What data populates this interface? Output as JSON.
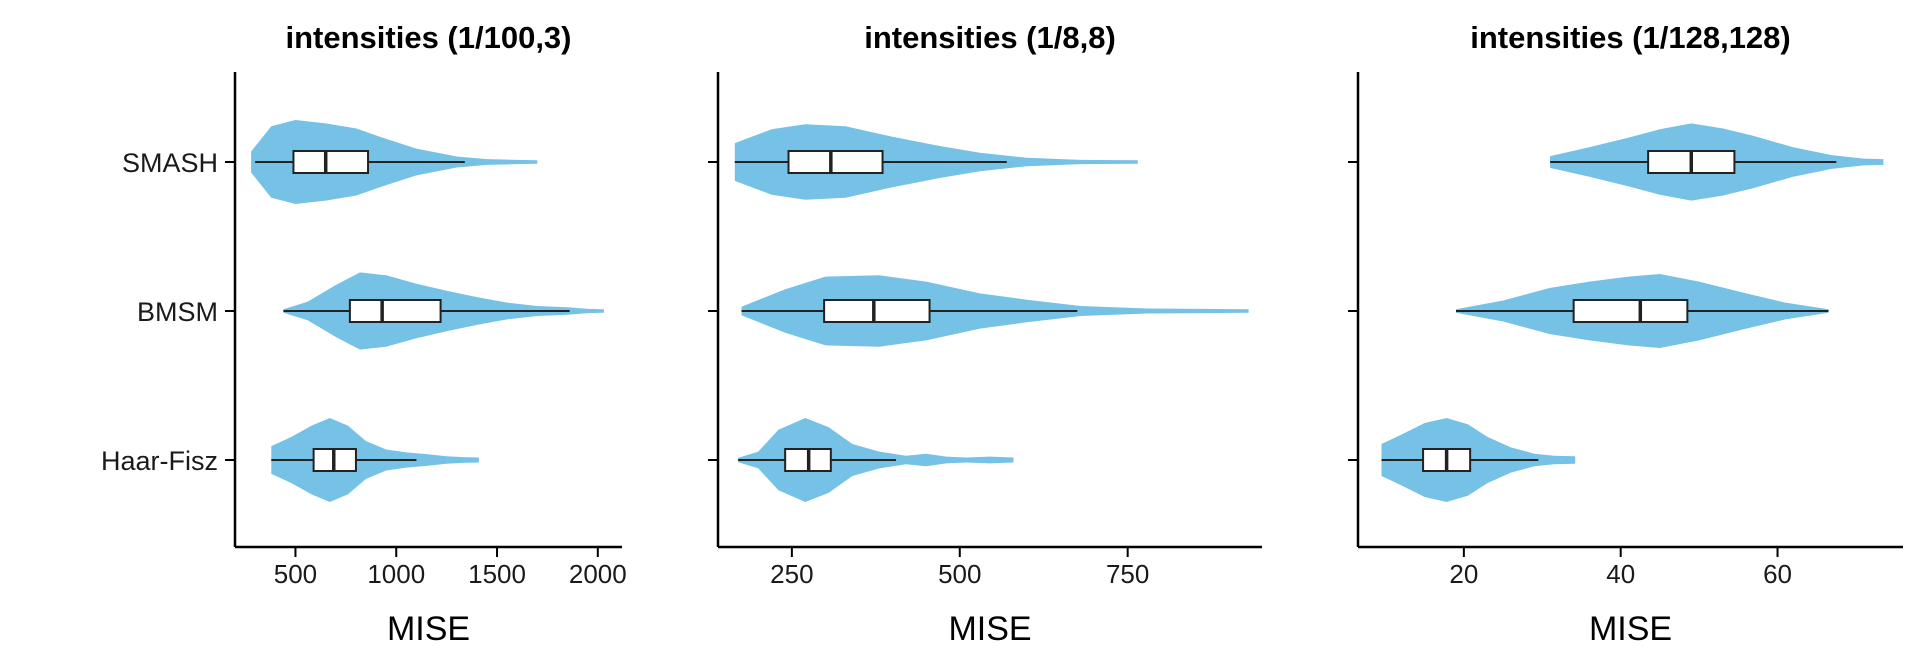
{
  "chart_data": [
    {
      "type": "violin",
      "title": "intensities (1/100,3)",
      "xlabel": "MISE",
      "ylabel": "",
      "xlim": [
        200,
        2120
      ],
      "xticks": [
        500,
        1000,
        1500,
        2000
      ],
      "categories": [
        "SMASH",
        "BMSM",
        "Haar-Fisz"
      ],
      "fill_color": "#76c1e6",
      "groups": [
        {
          "name": "SMASH",
          "box": {
            "min": 300,
            "q1": 490,
            "median": 650,
            "q3": 860,
            "max": 1340
          },
          "range": [
            280,
            1700
          ],
          "density": [
            [
              280,
              0.25
            ],
            [
              380,
              0.85
            ],
            [
              500,
              1.0
            ],
            [
              650,
              0.92
            ],
            [
              800,
              0.8
            ],
            [
              950,
              0.55
            ],
            [
              1100,
              0.32
            ],
            [
              1300,
              0.13
            ],
            [
              1450,
              0.07
            ],
            [
              1600,
              0.05
            ],
            [
              1700,
              0.04
            ]
          ]
        },
        {
          "name": "BMSM",
          "box": {
            "min": 440,
            "q1": 770,
            "median": 930,
            "q3": 1220,
            "max": 1860
          },
          "range": [
            440,
            2030
          ],
          "density": [
            [
              440,
              0.04
            ],
            [
              560,
              0.22
            ],
            [
              700,
              0.62
            ],
            [
              820,
              0.92
            ],
            [
              950,
              0.85
            ],
            [
              1100,
              0.65
            ],
            [
              1250,
              0.48
            ],
            [
              1400,
              0.33
            ],
            [
              1550,
              0.2
            ],
            [
              1700,
              0.12
            ],
            [
              1850,
              0.09
            ],
            [
              1950,
              0.05
            ],
            [
              2030,
              0.04
            ]
          ]
        },
        {
          "name": "Haar-Fisz",
          "box": {
            "min": 380,
            "q1": 590,
            "median": 690,
            "q3": 800,
            "max": 1100
          },
          "range": [
            380,
            1410
          ],
          "density": [
            [
              380,
              0.33
            ],
            [
              480,
              0.55
            ],
            [
              580,
              0.82
            ],
            [
              670,
              1.0
            ],
            [
              760,
              0.82
            ],
            [
              850,
              0.45
            ],
            [
              950,
              0.25
            ],
            [
              1050,
              0.18
            ],
            [
              1150,
              0.14
            ],
            [
              1250,
              0.09
            ],
            [
              1330,
              0.07
            ],
            [
              1410,
              0.06
            ]
          ]
        }
      ]
    },
    {
      "type": "violin",
      "title": "intensities (1/8,8)",
      "xlabel": "MISE",
      "ylabel": "",
      "xlim": [
        140,
        950
      ],
      "xticks": [
        250,
        500,
        750
      ],
      "categories": [
        "SMASH",
        "BMSM",
        "Haar-Fisz"
      ],
      "fill_color": "#76c1e6",
      "groups": [
        {
          "name": "SMASH",
          "box": {
            "min": 165,
            "q1": 245,
            "median": 308,
            "q3": 385,
            "max": 570
          },
          "range": [
            165,
            765
          ],
          "density": [
            [
              165,
              0.45
            ],
            [
              220,
              0.78
            ],
            [
              270,
              0.9
            ],
            [
              330,
              0.85
            ],
            [
              400,
              0.6
            ],
            [
              470,
              0.38
            ],
            [
              530,
              0.22
            ],
            [
              600,
              0.1
            ],
            [
              680,
              0.05
            ],
            [
              765,
              0.04
            ]
          ]
        },
        {
          "name": "BMSM",
          "box": {
            "min": 175,
            "q1": 298,
            "median": 372,
            "q3": 455,
            "max": 675
          },
          "range": [
            175,
            930
          ],
          "density": [
            [
              175,
              0.1
            ],
            [
              240,
              0.52
            ],
            [
              300,
              0.82
            ],
            [
              380,
              0.85
            ],
            [
              450,
              0.7
            ],
            [
              530,
              0.42
            ],
            [
              600,
              0.27
            ],
            [
              680,
              0.12
            ],
            [
              780,
              0.06
            ],
            [
              860,
              0.05
            ],
            [
              930,
              0.04
            ]
          ]
        },
        {
          "name": "Haar-Fisz",
          "box": {
            "min": 170,
            "q1": 240,
            "median": 275,
            "q3": 308,
            "max": 405
          },
          "range": [
            170,
            580
          ],
          "density": [
            [
              170,
              0.05
            ],
            [
              200,
              0.2
            ],
            [
              230,
              0.72
            ],
            [
              270,
              1.0
            ],
            [
              305,
              0.78
            ],
            [
              340,
              0.38
            ],
            [
              380,
              0.2
            ],
            [
              420,
              0.1
            ],
            [
              450,
              0.15
            ],
            [
              480,
              0.08
            ],
            [
              510,
              0.06
            ],
            [
              545,
              0.08
            ],
            [
              580,
              0.06
            ]
          ]
        }
      ]
    },
    {
      "type": "violin",
      "title": "intensities (1/128,128)",
      "xlabel": "MISE",
      "ylabel": "",
      "xlim": [
        6.5,
        76
      ],
      "xticks": [
        20,
        40,
        60
      ],
      "categories": [
        "SMASH",
        "BMSM",
        "Haar-Fisz"
      ],
      "fill_color": "#76c1e6",
      "groups": [
        {
          "name": "SMASH",
          "box": {
            "min": 31,
            "q1": 43.5,
            "median": 49,
            "q3": 54.5,
            "max": 67.5
          },
          "range": [
            31,
            73.5
          ],
          "density": [
            [
              31,
              0.14
            ],
            [
              36,
              0.35
            ],
            [
              41,
              0.58
            ],
            [
              45,
              0.78
            ],
            [
              49,
              0.92
            ],
            [
              53,
              0.8
            ],
            [
              57,
              0.62
            ],
            [
              62,
              0.35
            ],
            [
              67,
              0.16
            ],
            [
              71,
              0.08
            ],
            [
              73.5,
              0.07
            ]
          ]
        },
        {
          "name": "BMSM",
          "box": {
            "min": 19,
            "q1": 34,
            "median": 42.5,
            "q3": 48.5,
            "max": 66.5
          },
          "range": [
            19,
            66.5
          ],
          "density": [
            [
              19,
              0.04
            ],
            [
              25,
              0.25
            ],
            [
              31,
              0.55
            ],
            [
              36,
              0.7
            ],
            [
              41,
              0.82
            ],
            [
              45,
              0.88
            ],
            [
              50,
              0.7
            ],
            [
              56,
              0.42
            ],
            [
              61,
              0.2
            ],
            [
              66.5,
              0.04
            ]
          ]
        },
        {
          "name": "Haar-Fisz",
          "box": {
            "min": 9.5,
            "q1": 14.8,
            "median": 17.8,
            "q3": 20.8,
            "max": 29.5
          },
          "range": [
            9.5,
            34.2
          ],
          "density": [
            [
              9.5,
              0.38
            ],
            [
              12,
              0.6
            ],
            [
              15,
              0.88
            ],
            [
              17.8,
              1.0
            ],
            [
              20.5,
              0.85
            ],
            [
              23,
              0.55
            ],
            [
              26,
              0.3
            ],
            [
              29,
              0.15
            ],
            [
              31.5,
              0.1
            ],
            [
              34.2,
              0.09
            ]
          ]
        }
      ]
    }
  ]
}
